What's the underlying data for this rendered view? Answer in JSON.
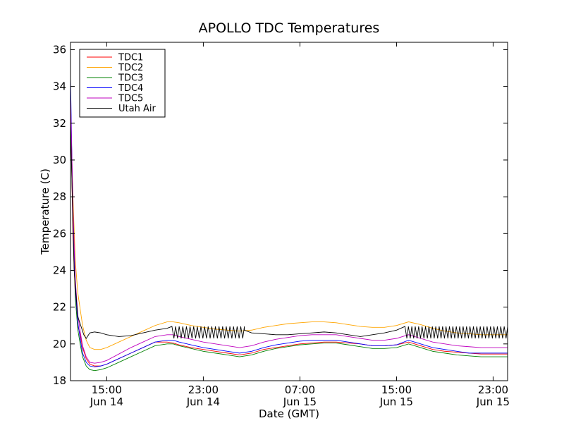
{
  "chart_data": {
    "type": "line",
    "title": "APOLLO TDC Temperatures",
    "xlabel": "Date (GMT)",
    "ylabel": "Temperature (C)",
    "xlim": [
      12.0,
      48.2
    ],
    "ylim": [
      18,
      36.4
    ],
    "x_unit": "hours since 00:00 Jun 14 (GMT)",
    "x_ticks": [
      {
        "value": 15,
        "line1": "15:00",
        "line2": "Jun 14"
      },
      {
        "value": 23,
        "line1": "23:00",
        "line2": "Jun 14"
      },
      {
        "value": 31,
        "line1": "07:00",
        "line2": "Jun 15"
      },
      {
        "value": 39,
        "line1": "15:00",
        "line2": "Jun 15"
      },
      {
        "value": 47,
        "line1": "23:00",
        "line2": "Jun 15"
      }
    ],
    "y_ticks": [
      {
        "value": 18,
        "label": "18"
      },
      {
        "value": 20,
        "label": "20"
      },
      {
        "value": 22,
        "label": "22"
      },
      {
        "value": 24,
        "label": "24"
      },
      {
        "value": 26,
        "label": "26"
      },
      {
        "value": 28,
        "label": "28"
      },
      {
        "value": 30,
        "label": "30"
      },
      {
        "value": 32,
        "label": "32"
      },
      {
        "value": 34,
        "label": "34"
      },
      {
        "value": 36,
        "label": "36"
      }
    ],
    "legend_position": "top-left",
    "series": [
      {
        "name": "TDC1",
        "color": "#ff0000",
        "x": [
          12.0,
          12.2,
          12.4,
          12.6,
          12.8,
          13.0,
          13.3,
          13.6,
          14.0,
          14.5,
          15.0,
          16.0,
          17.0,
          18.0,
          19.0,
          20.0,
          20.5,
          21.0,
          22.0,
          23.0,
          24.0,
          25.0,
          26.0,
          27.0,
          28.0,
          29.0,
          30.0,
          31.0,
          32.0,
          33.0,
          34.0,
          35.0,
          36.0,
          37.0,
          38.0,
          39.0,
          40.0,
          41.0,
          42.0,
          43.0,
          44.0,
          45.0,
          46.0,
          47.0,
          48.2
        ],
        "y": [
          33.0,
          26.0,
          22.5,
          21.0,
          20.5,
          19.8,
          19.2,
          18.9,
          18.8,
          18.8,
          18.9,
          19.2,
          19.5,
          19.8,
          20.1,
          20.1,
          20.05,
          19.95,
          19.8,
          19.7,
          19.6,
          19.5,
          19.4,
          19.5,
          19.7,
          19.8,
          19.9,
          20.0,
          20.05,
          20.1,
          20.1,
          20.05,
          20.0,
          19.9,
          19.9,
          19.95,
          20.1,
          19.9,
          19.7,
          19.6,
          19.55,
          19.5,
          19.45,
          19.45,
          19.45
        ]
      },
      {
        "name": "TDC2",
        "color": "#ffa500",
        "x": [
          12.0,
          12.2,
          12.4,
          12.6,
          12.8,
          13.0,
          13.3,
          13.6,
          14.0,
          14.5,
          15.0,
          16.0,
          17.0,
          18.0,
          19.0,
          20.0,
          20.5,
          21.0,
          22.0,
          23.0,
          24.0,
          25.0,
          26.0,
          27.0,
          28.0,
          29.0,
          30.0,
          31.0,
          32.0,
          33.0,
          34.0,
          35.0,
          36.0,
          37.0,
          38.0,
          39.0,
          40.0,
          41.0,
          42.0,
          43.0,
          44.0,
          45.0,
          46.0,
          47.0,
          48.2
        ],
        "y": [
          33.0,
          28.0,
          24.5,
          22.8,
          21.9,
          21.0,
          20.2,
          19.8,
          19.7,
          19.7,
          19.8,
          20.1,
          20.4,
          20.7,
          21.0,
          21.2,
          21.2,
          21.15,
          21.0,
          20.9,
          20.8,
          20.75,
          20.7,
          20.75,
          20.9,
          21.0,
          21.1,
          21.15,
          21.2,
          21.2,
          21.15,
          21.05,
          20.95,
          20.9,
          20.9,
          21.0,
          21.2,
          21.05,
          20.85,
          20.7,
          20.6,
          20.55,
          20.5,
          20.5,
          20.5
        ]
      },
      {
        "name": "TDC3",
        "color": "#008000",
        "x": [
          12.0,
          12.2,
          12.4,
          12.6,
          12.8,
          13.0,
          13.3,
          13.6,
          14.0,
          14.5,
          15.0,
          16.0,
          17.0,
          18.0,
          19.0,
          20.0,
          20.5,
          21.0,
          22.0,
          23.0,
          24.0,
          25.0,
          26.0,
          27.0,
          28.0,
          29.0,
          30.0,
          31.0,
          32.0,
          33.0,
          34.0,
          35.0,
          36.0,
          37.0,
          38.0,
          39.0,
          40.0,
          41.0,
          42.0,
          43.0,
          44.0,
          45.0,
          46.0,
          47.0,
          48.2
        ],
        "y": [
          33.0,
          26.5,
          22.5,
          20.8,
          20.0,
          19.3,
          18.8,
          18.6,
          18.55,
          18.6,
          18.7,
          19.0,
          19.3,
          19.6,
          19.9,
          20.0,
          20.0,
          19.9,
          19.75,
          19.6,
          19.5,
          19.4,
          19.3,
          19.4,
          19.6,
          19.75,
          19.85,
          19.95,
          20.0,
          20.05,
          20.05,
          19.95,
          19.85,
          19.75,
          19.75,
          19.8,
          20.0,
          19.8,
          19.6,
          19.5,
          19.4,
          19.35,
          19.3,
          19.3,
          19.3
        ]
      },
      {
        "name": "TDC4",
        "color": "#0000ff",
        "x": [
          12.0,
          12.2,
          12.4,
          12.6,
          12.8,
          13.0,
          13.3,
          13.6,
          14.0,
          14.5,
          15.0,
          16.0,
          17.0,
          18.0,
          19.0,
          20.0,
          20.5,
          21.0,
          22.0,
          23.0,
          24.0,
          25.0,
          26.0,
          27.0,
          28.0,
          29.0,
          30.0,
          31.0,
          32.0,
          33.0,
          34.0,
          35.0,
          36.0,
          37.0,
          38.0,
          39.0,
          40.0,
          41.0,
          42.0,
          43.0,
          44.0,
          45.0,
          46.0,
          47.0,
          48.2
        ],
        "y": [
          34.5,
          27.0,
          23.0,
          21.2,
          20.3,
          19.5,
          19.0,
          18.8,
          18.75,
          18.8,
          18.9,
          19.2,
          19.5,
          19.8,
          20.1,
          20.2,
          20.2,
          20.1,
          19.95,
          19.8,
          19.7,
          19.6,
          19.5,
          19.6,
          19.8,
          19.95,
          20.05,
          20.15,
          20.2,
          20.2,
          20.2,
          20.1,
          20.0,
          19.9,
          19.9,
          19.95,
          20.2,
          20.0,
          19.8,
          19.7,
          19.6,
          19.5,
          19.5,
          19.5,
          19.5
        ]
      },
      {
        "name": "TDC5",
        "color": "#bf00bf",
        "x": [
          12.0,
          12.2,
          12.4,
          12.6,
          12.8,
          13.0,
          13.3,
          13.6,
          14.0,
          14.5,
          15.0,
          16.0,
          17.0,
          18.0,
          19.0,
          20.0,
          20.5,
          21.0,
          22.0,
          23.0,
          24.0,
          25.0,
          26.0,
          27.0,
          28.0,
          29.0,
          30.0,
          31.0,
          32.0,
          33.0,
          34.0,
          35.0,
          36.0,
          37.0,
          38.0,
          39.0,
          40.0,
          41.0,
          42.0,
          43.0,
          44.0,
          45.0,
          46.0,
          47.0,
          48.2
        ],
        "y": [
          33.5,
          27.5,
          23.5,
          21.6,
          20.7,
          19.9,
          19.3,
          19.0,
          18.95,
          19.0,
          19.1,
          19.45,
          19.8,
          20.1,
          20.4,
          20.5,
          20.5,
          20.4,
          20.25,
          20.1,
          20.0,
          19.9,
          19.8,
          19.9,
          20.1,
          20.25,
          20.35,
          20.45,
          20.5,
          20.5,
          20.5,
          20.4,
          20.3,
          20.2,
          20.2,
          20.3,
          20.5,
          20.3,
          20.1,
          20.0,
          19.9,
          19.85,
          19.8,
          19.8,
          19.8
        ]
      },
      {
        "name": "Utah Air",
        "color": "#000000",
        "x": [
          12.0,
          12.3,
          12.6,
          12.9,
          13.1,
          13.3,
          13.6,
          14.0,
          14.5,
          15.0,
          16.0,
          17.0,
          18.0,
          19.0,
          20.0,
          20.4
        ],
        "y": [
          32.0,
          24.0,
          21.5,
          20.9,
          20.5,
          20.3,
          20.6,
          20.65,
          20.6,
          20.5,
          20.4,
          20.45,
          20.6,
          20.75,
          20.85,
          20.95
        ],
        "sawtooth_segments": [
          {
            "x_start": 20.4,
            "x_end": 26.4,
            "n": 20,
            "top": 20.95,
            "bottom": 20.3
          },
          {
            "x_start": 39.7,
            "x_end": 48.2,
            "n": 30,
            "top": 20.95,
            "bottom": 20.3
          }
        ],
        "mid_x": [
          26.4,
          27.0,
          28.0,
          29.0,
          30.0,
          31.0,
          32.0,
          33.0,
          34.0,
          35.0,
          36.0,
          37.0,
          38.0,
          39.0,
          39.7
        ],
        "mid_y": [
          20.75,
          20.6,
          20.55,
          20.5,
          20.5,
          20.55,
          20.6,
          20.65,
          20.6,
          20.5,
          20.4,
          20.5,
          20.6,
          20.75,
          20.95
        ]
      }
    ]
  }
}
